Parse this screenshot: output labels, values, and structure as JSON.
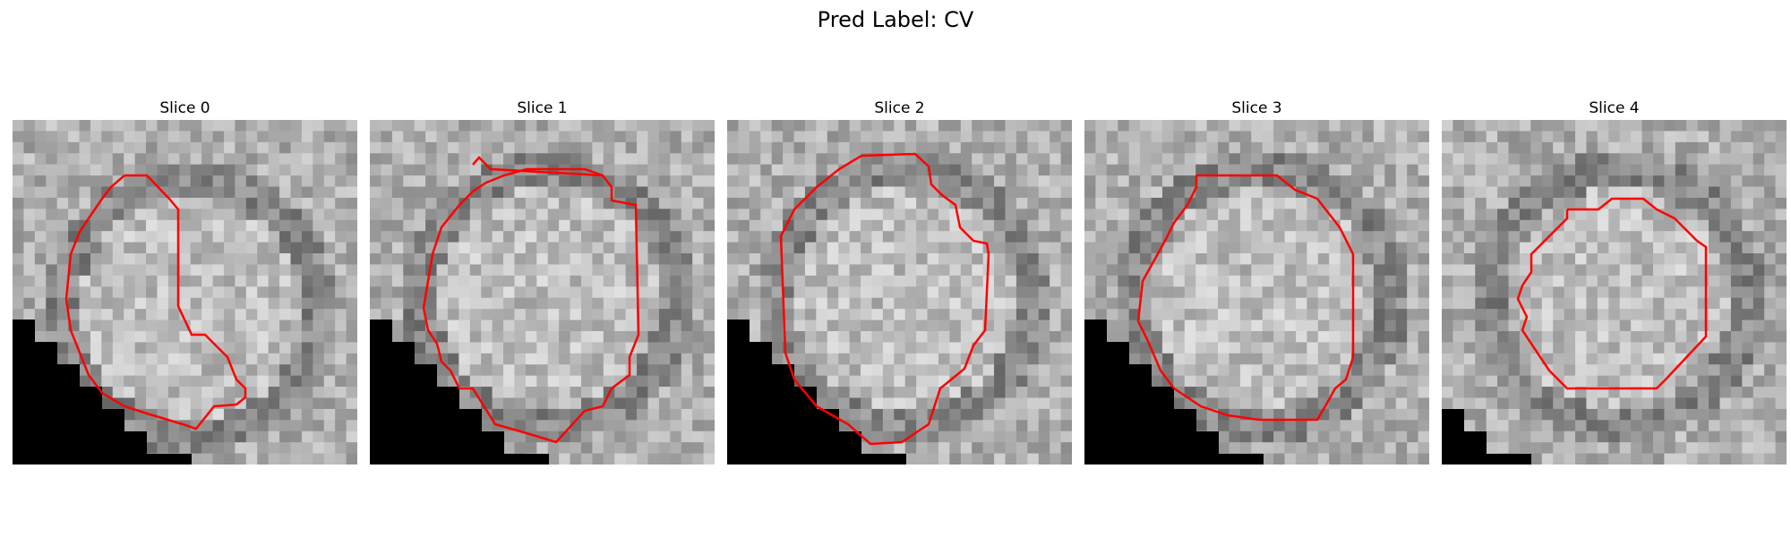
{
  "figure": {
    "title": "Pred Label: CV"
  },
  "contour_color": "#ff0000",
  "panels": [
    {
      "title": "Slice 0"
    },
    {
      "title": "Slice 1"
    },
    {
      "title": "Slice 2"
    },
    {
      "title": "Slice 3"
    },
    {
      "title": "Slice 4"
    }
  ]
}
